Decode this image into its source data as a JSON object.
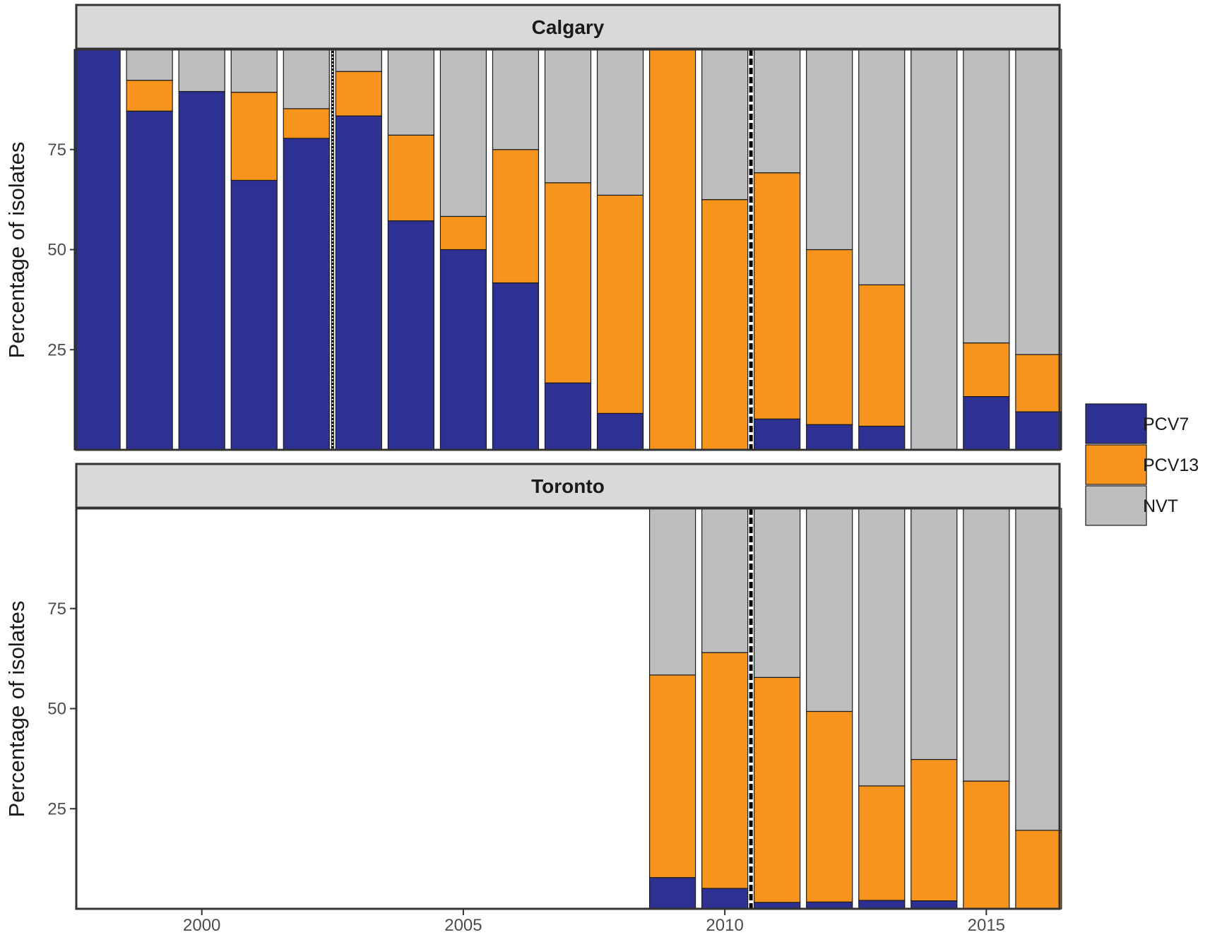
{
  "chart_data": {
    "type": "bar",
    "stacked": true,
    "ylabel": "Percentage of isolates",
    "yticks": [
      25,
      50,
      75
    ],
    "ylim": [
      0,
      100
    ],
    "xlim": [
      1997.6,
      2016.4
    ],
    "xticks": [
      2000,
      2005,
      2010,
      2015
    ],
    "series_names": [
      "PCV7",
      "PCV13",
      "NVT"
    ],
    "colors": {
      "PCV7": "#2e3192",
      "PCV13": "#f7941d",
      "NVT": "#bcbec0",
      "strip": "#d9d9d9"
    },
    "legend": [
      {
        "name": "PCV7",
        "color": "#2e3192"
      },
      {
        "name": "PCV13",
        "color": "#f7941d"
      },
      {
        "name": "NVT",
        "color": "#bcbec0"
      }
    ],
    "panels": [
      {
        "title": "Calgary",
        "vlines": [
          {
            "x": 2002.5,
            "style": "dotted"
          },
          {
            "x": 2010.5,
            "style": "dashed"
          }
        ],
        "years": [
          1998,
          1999,
          2000,
          2001,
          2002,
          2003,
          2004,
          2005,
          2006,
          2007,
          2008,
          2009,
          2010,
          2011,
          2012,
          2013,
          2014,
          2015,
          2016
        ],
        "PCV7": [
          100,
          84.6,
          89.5,
          67.3,
          77.8,
          83.4,
          57.2,
          50.0,
          41.7,
          16.7,
          9.1,
          0,
          0,
          7.7,
          6.3,
          5.9,
          0,
          13.3,
          9.5
        ],
        "PCV13": [
          0,
          7.7,
          0,
          22.0,
          7.4,
          11.1,
          21.4,
          8.3,
          33.3,
          50.0,
          54.5,
          100,
          62.5,
          61.5,
          43.7,
          35.3,
          0,
          13.4,
          14.3
        ],
        "NVT": [
          0,
          7.7,
          10.5,
          10.7,
          14.8,
          5.5,
          21.4,
          41.7,
          25.0,
          33.3,
          36.4,
          0,
          37.5,
          30.8,
          50.0,
          58.8,
          100,
          73.3,
          76.2
        ]
      },
      {
        "title": "Toronto",
        "vlines": [
          {
            "x": 2010.5,
            "style": "dashed"
          }
        ],
        "years": [
          2009,
          2010,
          2011,
          2012,
          2013,
          2014,
          2015,
          2016
        ],
        "PCV7": [
          7.8,
          5.1,
          1.6,
          1.7,
          2.1,
          2.0,
          0,
          0
        ],
        "PCV13": [
          50.6,
          58.9,
          56.2,
          47.6,
          28.6,
          35.3,
          31.9,
          19.6
        ],
        "NVT": [
          41.6,
          36.0,
          42.2,
          50.7,
          69.3,
          62.7,
          68.1,
          80.4
        ]
      }
    ]
  }
}
